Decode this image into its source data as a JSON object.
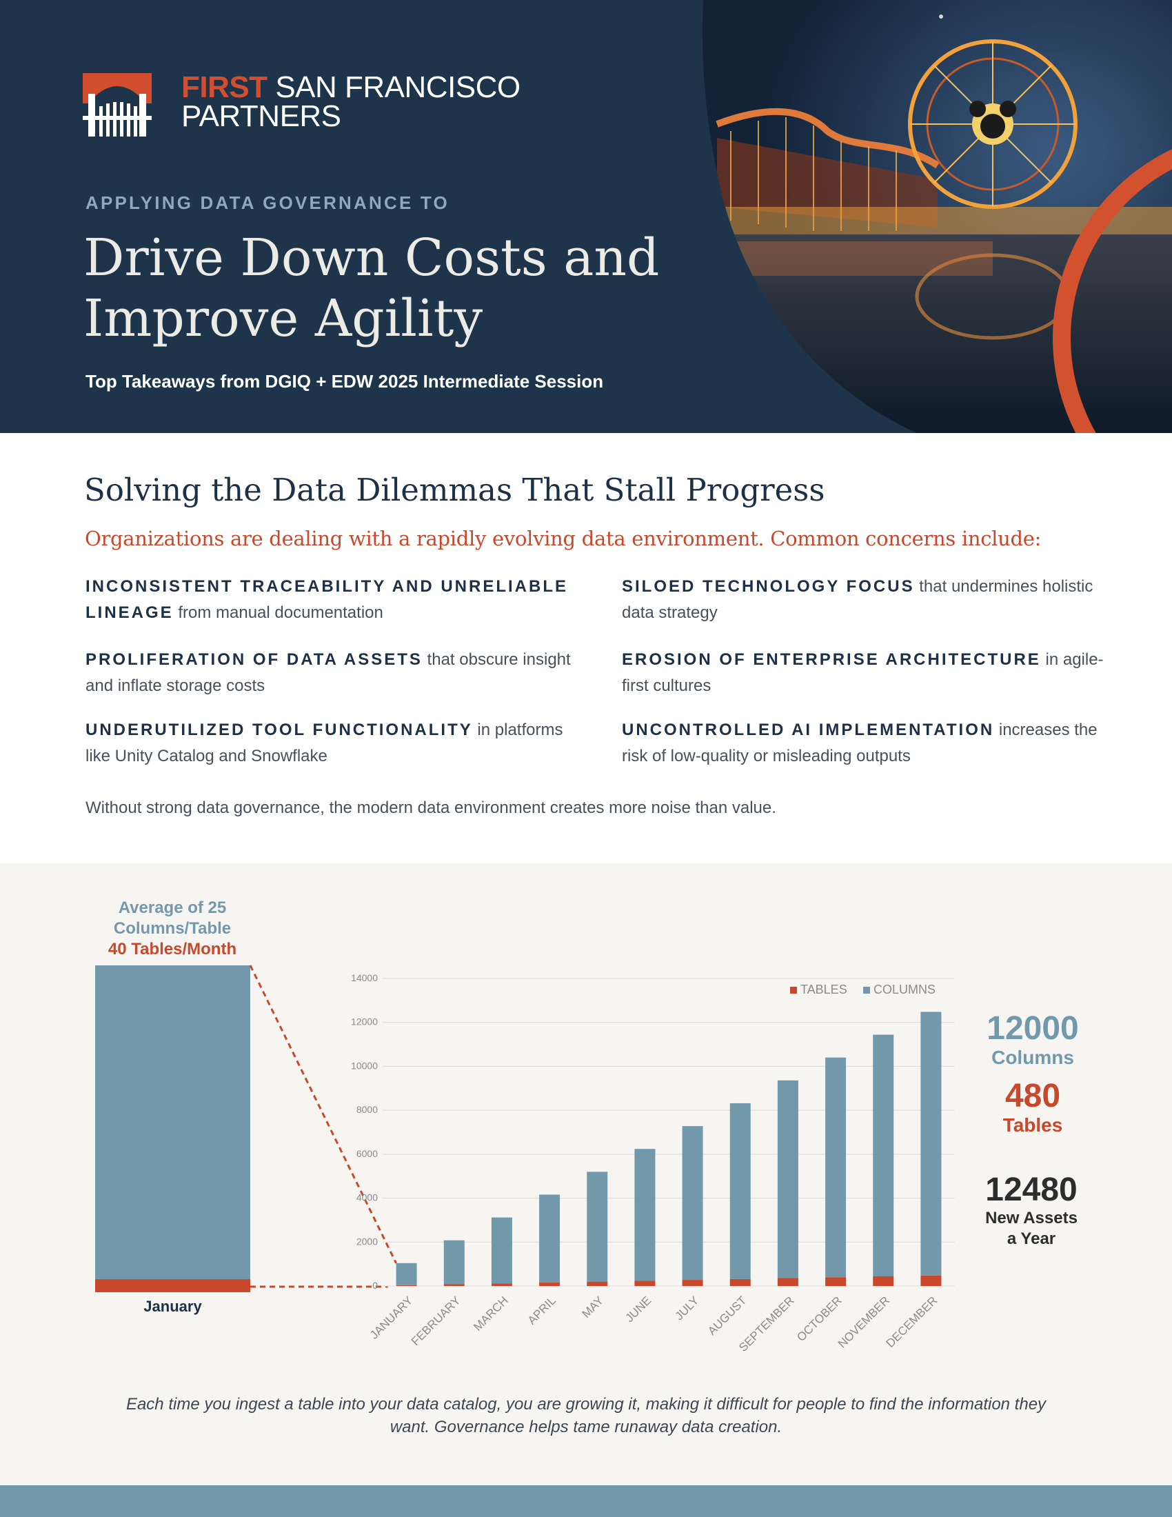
{
  "header": {
    "logo_first": "FIRST",
    "logo_rest_line1": " SAN FRANCISCO",
    "logo_line2": "PARTNERS",
    "eyebrow": "APPLYING DATA GOVERNANCE TO",
    "title_line1": "Drive Down Costs and",
    "title_line2": "Improve Agility",
    "subtitle": "Top Takeaways from DGIQ + EDW 2025 Intermediate Session"
  },
  "intro": {
    "title": "Solving the Data Dilemmas That Stall Progress",
    "lead": "Organizations are dealing with a rapidly evolving data environment. Common concerns include:",
    "concerns": [
      {
        "highlight": "INCONSISTENT TRACEABILITY AND UNRELIABLE LINEAGE",
        "rest": " from manual documentation"
      },
      {
        "highlight": "SILOED TECHNOLOGY FOCUS",
        "rest": " that undermines holistic data strategy"
      },
      {
        "highlight": "PROLIFERATION OF DATA ASSETS",
        "rest": " that obscure insight and inflate storage costs"
      },
      {
        "highlight": "EROSION OF ENTERPRISE ARCHITECTURE",
        "rest": " in agile-first cultures"
      },
      {
        "highlight": "UNDERUTILIZED TOOL FUNCTIONALITY",
        "rest": " in platforms like Unity Catalog and Snowflake"
      },
      {
        "highlight": "UNCONTROLLED AI IMPLEMENTATION",
        "rest": " increases the risk of low-quality or misleading outputs"
      }
    ],
    "conclusion": "Without strong data governance, the modern data environment creates more noise than value."
  },
  "zoom": {
    "label_line1": "Average of 25",
    "label_line2": "Columns/Table",
    "label_line3": "40 Tables/Month",
    "month_label": "January",
    "tables": 40,
    "columns": 1000
  },
  "stats": {
    "columns_value": "12000",
    "columns_label": "Columns",
    "tables_value": "480",
    "tables_label": "Tables",
    "total_value": "12480",
    "total_label_line1": "New Assets",
    "total_label_line2": "a Year"
  },
  "caption": {
    "line1": "Each time you ingest a table into your data catalog, you are growing it, making it difficult for people to find the information they",
    "line2": "want. Governance helps tame runaway data creation."
  },
  "colors": {
    "columns": "#7199ab",
    "tables": "#c9472a",
    "navy": "#1d344b"
  },
  "chart_data": {
    "type": "bar",
    "stacked": true,
    "title": "",
    "xlabel": "",
    "ylabel": "",
    "ylim": [
      0,
      14000
    ],
    "yticks": [
      0,
      2000,
      4000,
      6000,
      8000,
      10000,
      12000,
      14000
    ],
    "categories": [
      "JANUARY",
      "FEBRUARY",
      "MARCH",
      "APRIL",
      "MAY",
      "JUNE",
      "JULY",
      "AUGUST",
      "SEPTEMBER",
      "OCTOBER",
      "NOVEMBER",
      "DECEMBER"
    ],
    "legend_position": "top-right",
    "series": [
      {
        "name": "TABLES",
        "values": [
          40,
          80,
          120,
          160,
          200,
          240,
          280,
          320,
          360,
          400,
          440,
          480
        ]
      },
      {
        "name": "COLUMNS",
        "values": [
          1000,
          2000,
          3000,
          4000,
          5000,
          6000,
          7000,
          8000,
          9000,
          10000,
          11000,
          12000
        ]
      }
    ]
  }
}
